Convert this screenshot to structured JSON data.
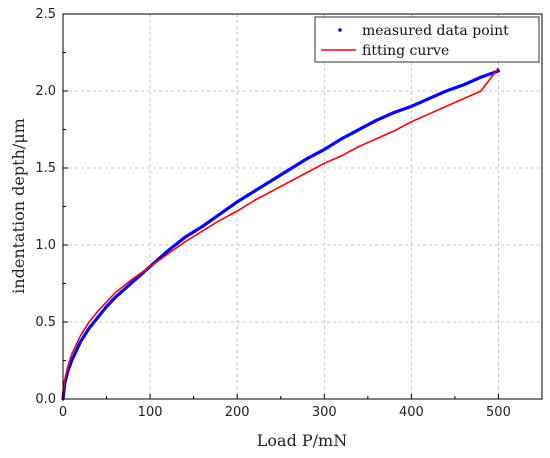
{
  "chart_data": {
    "type": "line",
    "title": "",
    "xlabel": "Load P/mN",
    "ylabel": "indentation depth/μm",
    "xlim": [
      0,
      550
    ],
    "ylim": [
      0,
      2.5
    ],
    "xticks": [
      0,
      100,
      200,
      300,
      400,
      500
    ],
    "xtick_labels": [
      "0",
      "100",
      "200",
      "300",
      "400",
      "500"
    ],
    "yticks": [
      0.0,
      0.5,
      1.0,
      1.5,
      2.0,
      2.5
    ],
    "ytick_labels": [
      "0.0",
      "0.5",
      "1.0",
      "1.5",
      "2.0",
      "2.5"
    ],
    "grid": true,
    "legend_position": "top-right",
    "series": [
      {
        "name": "measured data point",
        "style": "points",
        "color": "#0000ff",
        "x": [
          0,
          2,
          5,
          10,
          20,
          30,
          40,
          50,
          60,
          80,
          100,
          120,
          140,
          160,
          180,
          200,
          220,
          240,
          260,
          280,
          300,
          320,
          340,
          360,
          380,
          400,
          420,
          440,
          460,
          480,
          500
        ],
        "y": [
          0.0,
          0.1,
          0.17,
          0.25,
          0.37,
          0.46,
          0.53,
          0.6,
          0.66,
          0.76,
          0.86,
          0.96,
          1.05,
          1.12,
          1.2,
          1.28,
          1.35,
          1.42,
          1.49,
          1.56,
          1.62,
          1.69,
          1.75,
          1.81,
          1.86,
          1.9,
          1.95,
          2.0,
          2.04,
          2.09,
          2.13
        ]
      },
      {
        "name": "fitting curve",
        "style": "line",
        "color": "#ff0000",
        "x": [
          0,
          1,
          2,
          5,
          10,
          20,
          30,
          40,
          50,
          60,
          80,
          100,
          120,
          140,
          160,
          180,
          200,
          220,
          240,
          260,
          280,
          300,
          320,
          340,
          360,
          380,
          400,
          420,
          440,
          460,
          480,
          500
        ],
        "y": [
          0.0,
          0.08,
          0.12,
          0.2,
          0.29,
          0.41,
          0.5,
          0.57,
          0.63,
          0.69,
          0.78,
          0.86,
          0.94,
          1.02,
          1.09,
          1.16,
          1.22,
          1.29,
          1.35,
          1.41,
          1.47,
          1.53,
          1.58,
          1.64,
          1.69,
          1.74,
          1.8,
          1.85,
          1.9,
          1.95,
          2.0,
          2.15
        ]
      }
    ]
  }
}
